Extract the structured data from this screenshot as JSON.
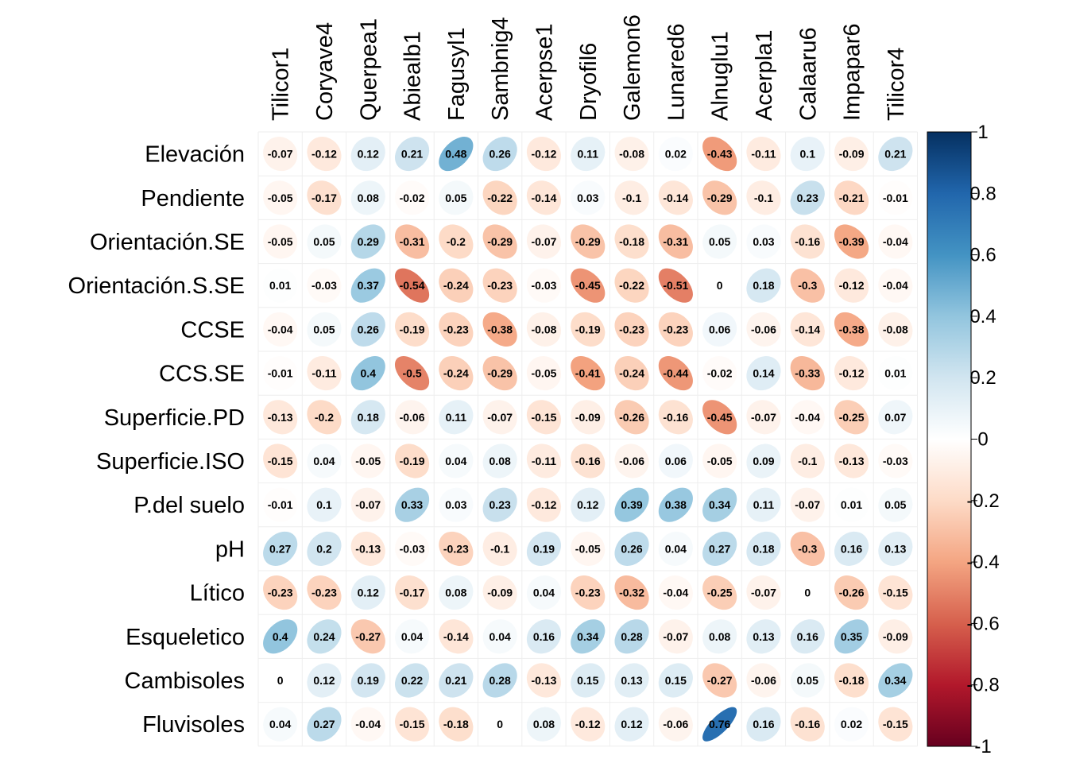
{
  "chart_data": {
    "type": "heatmap",
    "method": "ellipse",
    "title": "",
    "columns": [
      "Tilicor1",
      "Coryave4",
      "Querpea1",
      "Abiealb1",
      "Fagusyl1",
      "Sambnig4",
      "Acerpse1",
      "Dryofil6",
      "Galemon6",
      "Lunared6",
      "Alnuglu1",
      "Acerpla1",
      "Calaaru6",
      "Impapar6",
      "Tilicor4"
    ],
    "rows": [
      "Elevación",
      "Pendiente",
      "Orientación.SE",
      "Orientación.S.SE",
      "CCSE",
      "CCS.SE",
      "Superficie.PD",
      "Superficie.ISO",
      "P.del suelo",
      "pH",
      "Lítico",
      "Esqueletico",
      "Cambisoles",
      "Fluvisoles"
    ],
    "values": [
      [
        -0.07,
        -0.12,
        0.12,
        0.21,
        0.48,
        0.26,
        -0.12,
        0.11,
        -0.08,
        0.02,
        -0.43,
        -0.11,
        0.1,
        -0.09,
        0.21
      ],
      [
        -0.05,
        -0.17,
        0.08,
        -0.02,
        0.05,
        -0.22,
        -0.14,
        0.03,
        -0.1,
        -0.14,
        -0.29,
        -0.1,
        0.23,
        -0.21,
        -0.01
      ],
      [
        -0.05,
        0.05,
        0.29,
        -0.31,
        -0.2,
        -0.29,
        -0.07,
        -0.29,
        -0.18,
        -0.31,
        0.05,
        0.03,
        -0.16,
        -0.39,
        -0.04
      ],
      [
        0.01,
        -0.03,
        0.37,
        -0.54,
        -0.24,
        -0.23,
        -0.03,
        -0.45,
        -0.22,
        -0.51,
        0,
        0.18,
        -0.3,
        -0.12,
        -0.04
      ],
      [
        -0.04,
        0.05,
        0.26,
        -0.19,
        -0.23,
        -0.38,
        -0.08,
        -0.19,
        -0.23,
        -0.23,
        0.06,
        -0.06,
        -0.14,
        -0.38,
        -0.08
      ],
      [
        -0.01,
        -0.11,
        0.4,
        -0.5,
        -0.24,
        -0.29,
        -0.05,
        -0.41,
        -0.24,
        -0.44,
        -0.02,
        0.14,
        -0.33,
        -0.12,
        0.01
      ],
      [
        -0.13,
        -0.2,
        0.18,
        -0.06,
        0.11,
        -0.07,
        -0.15,
        -0.09,
        -0.26,
        -0.16,
        -0.45,
        -0.07,
        -0.04,
        -0.25,
        0.07
      ],
      [
        -0.15,
        0.04,
        -0.05,
        -0.19,
        0.04,
        0.08,
        -0.11,
        -0.16,
        -0.06,
        0.06,
        -0.05,
        0.09,
        -0.1,
        -0.13,
        -0.03
      ],
      [
        -0.01,
        0.1,
        -0.07,
        0.33,
        0.03,
        0.23,
        -0.12,
        0.12,
        0.39,
        0.38,
        0.34,
        0.11,
        -0.07,
        0.01,
        0.05
      ],
      [
        0.27,
        0.2,
        -0.13,
        -0.03,
        -0.23,
        -0.1,
        0.19,
        -0.05,
        0.26,
        0.04,
        0.27,
        0.18,
        -0.3,
        0.16,
        0.13
      ],
      [
        -0.23,
        -0.23,
        0.12,
        -0.17,
        0.08,
        -0.09,
        0.04,
        -0.23,
        -0.32,
        -0.04,
        -0.25,
        -0.07,
        0,
        -0.26,
        -0.15
      ],
      [
        0.4,
        0.24,
        -0.27,
        0.04,
        -0.14,
        0.04,
        0.16,
        0.34,
        0.28,
        -0.07,
        0.08,
        0.13,
        0.16,
        0.35,
        -0.09
      ],
      [
        0,
        0.12,
        0.19,
        0.22,
        0.21,
        0.28,
        -0.13,
        0.15,
        0.13,
        0.15,
        -0.27,
        -0.06,
        0.05,
        -0.18,
        0.34
      ],
      [
        0.04,
        0.27,
        -0.04,
        -0.15,
        -0.18,
        0,
        0.08,
        -0.12,
        0.12,
        -0.06,
        0.76,
        0.16,
        -0.16,
        0.02,
        -0.15
      ]
    ],
    "colorbar": {
      "ticks": [
        "1",
        "0.8",
        "0.6",
        "0.4",
        "0.2",
        "0",
        "-0.2",
        "-0.4",
        "-0.6",
        "-0.8",
        "-1"
      ],
      "range": [
        -1,
        1
      ]
    },
    "colors": {
      "negative_end": "#67001F",
      "neutral": "#FFFFFF",
      "positive_end": "#053061",
      "grid": "#EEEEEE"
    }
  }
}
